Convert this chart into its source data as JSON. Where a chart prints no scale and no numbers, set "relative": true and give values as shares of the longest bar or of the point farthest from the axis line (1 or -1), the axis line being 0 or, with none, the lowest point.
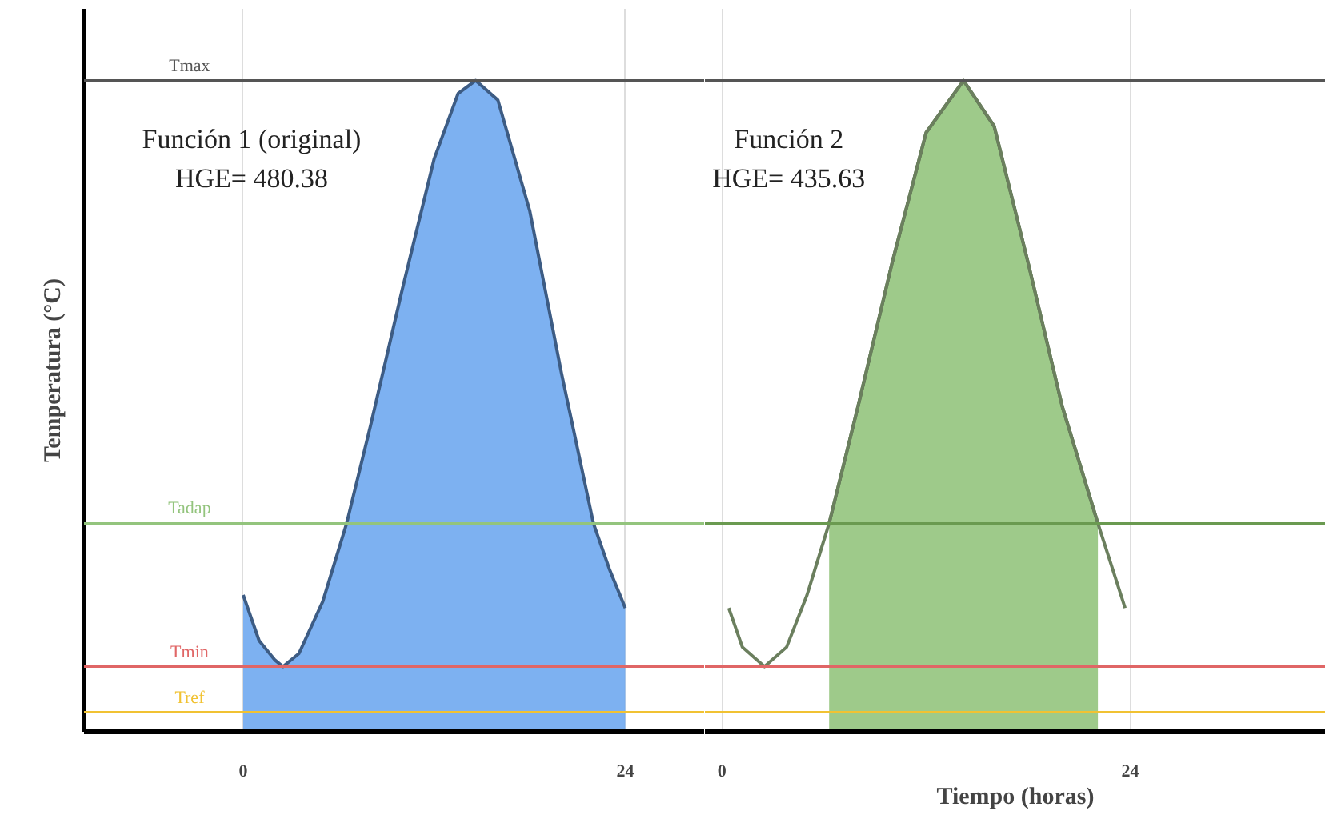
{
  "chart_data": [
    {
      "type": "area",
      "relative": true,
      "ylabel": "Temperatura (°C)",
      "xlim": [
        -10,
        29
      ],
      "xticks": [
        0,
        24
      ],
      "grid": "x",
      "annotations": [
        "Función 1 (original)",
        "HGE= 480.38"
      ],
      "ref_lines": [
        {
          "axis": "y",
          "value": 1.0,
          "label": "Tmax",
          "color": "#555555"
        },
        {
          "axis": "y",
          "value": 0.32,
          "label": "Tadap",
          "color": "#93c47d"
        },
        {
          "axis": "y",
          "value": 0.1,
          "label": "Tmin",
          "color": "#e06666"
        },
        {
          "axis": "y",
          "value": 0.03,
          "label": "Tref",
          "color": "#f1c232"
        }
      ],
      "series": [
        {
          "color": "#6fa8f0",
          "x": [
            0,
            1,
            2,
            2.5,
            3.5,
            5,
            6.5,
            8,
            10,
            12,
            13.5,
            14.6,
            16,
            18,
            20,
            22,
            23,
            24
          ],
          "values": [
            0.21,
            0.14,
            0.11,
            0.1,
            0.12,
            0.2,
            0.32,
            0.47,
            0.68,
            0.88,
            0.98,
            1.0,
            0.97,
            0.8,
            0.55,
            0.32,
            0.25,
            0.19
          ]
        }
      ]
    },
    {
      "type": "area",
      "relative": true,
      "xlabel": "Tiempo (horas)",
      "xlim": [
        -1,
        35.5
      ],
      "xticks": [
        0,
        24
      ],
      "grid": "x",
      "annotations": [
        "Función 2",
        "HGE= 435.63"
      ],
      "ref_lines": [
        {
          "axis": "y",
          "value": 1.0,
          "color": "#555555"
        },
        {
          "axis": "y",
          "value": 0.32,
          "color": "#6a9a50"
        },
        {
          "axis": "y",
          "value": 0.1,
          "color": "#e06666"
        },
        {
          "axis": "y",
          "value": 0.03,
          "color": "#f1c232"
        }
      ],
      "series": [
        {
          "color": "#93c47d",
          "x": [
            6.3,
            8,
            10,
            12,
            14.2,
            16,
            18,
            20,
            22.1
          ],
          "values": [
            0.32,
            0.5,
            0.72,
            0.92,
            1.0,
            0.93,
            0.72,
            0.5,
            0.32
          ]
        },
        {
          "type": "line",
          "color": "#6b7f5e",
          "x": [
            0.4,
            1.2,
            2.5,
            3.8,
            5,
            6.3,
            8,
            10,
            12,
            14.2,
            16,
            18,
            20,
            22.1,
            23.7
          ],
          "values": [
            0.19,
            0.13,
            0.1,
            0.13,
            0.21,
            0.32,
            0.5,
            0.72,
            0.92,
            1.0,
            0.93,
            0.72,
            0.5,
            0.32,
            0.19
          ]
        }
      ]
    }
  ]
}
